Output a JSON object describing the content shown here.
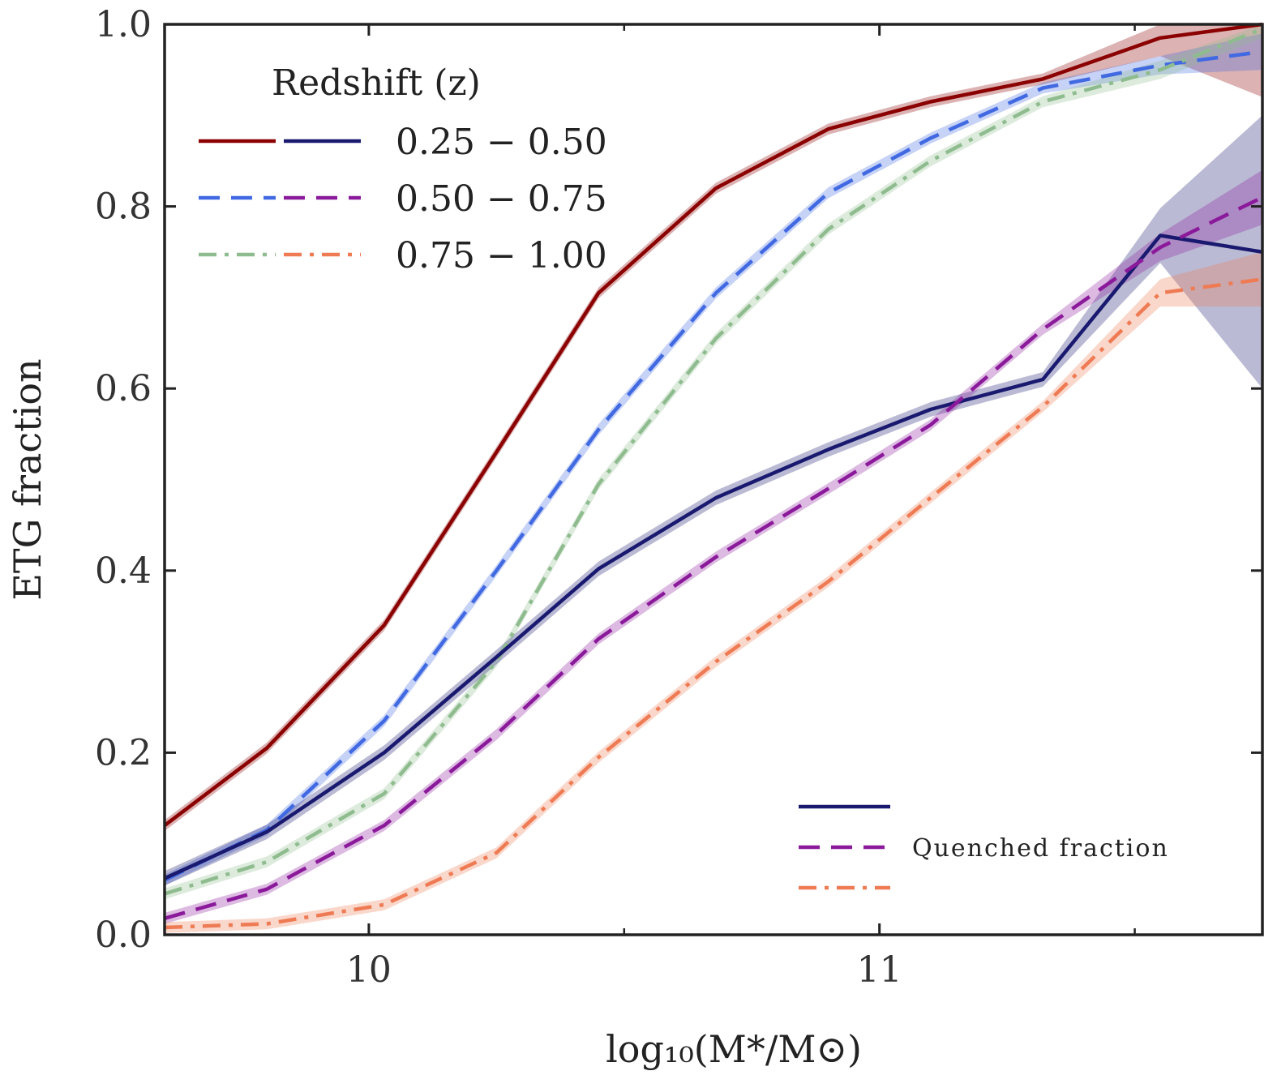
{
  "chart_data": {
    "type": "line",
    "title": "",
    "xlabel": "log₁₀(M*/M⊙)",
    "ylabel": "ETG fraction",
    "xlim": [
      9.6,
      11.75
    ],
    "ylim": [
      0.0,
      1.0
    ],
    "xticks": [
      10,
      11
    ],
    "xtick_labels": [
      "10",
      "11"
    ],
    "xminor": [
      9.5,
      10.5,
      11.5
    ],
    "yticks": [
      0.0,
      0.2,
      0.4,
      0.6,
      0.8,
      1.0
    ],
    "ytick_labels": [
      "0.0",
      "0.2",
      "0.4",
      "0.6",
      "0.8",
      "1.0"
    ],
    "grid": false,
    "legend": {
      "title": "Redshift (z)",
      "position": "top-left",
      "entries": [
        "0.25 − 0.50",
        "0.50 − 0.75",
        "0.75 − 1.00"
      ]
    },
    "legend2": {
      "label": "Quenched fraction",
      "position": "bottom-right"
    },
    "colors": {
      "etg_z1": "#8b0000",
      "etg_z2": "#4169e1",
      "etg_z3": "#8fbc8f",
      "q_z1": "#191970",
      "q_z2": "#8b1a9b",
      "q_z3": "#ee7b54"
    },
    "x": [
      9.6,
      9.8,
      10.03,
      10.25,
      10.45,
      10.68,
      10.9,
      11.1,
      11.32,
      11.55,
      11.75
    ],
    "series": [
      {
        "name": "ETG fraction 0.25 − 0.50",
        "style": "solid",
        "color": "#8b0000",
        "band": 0.006,
        "values": [
          0.12,
          0.205,
          0.34,
          0.53,
          0.705,
          0.82,
          0.885,
          0.915,
          0.94,
          0.985,
          1.0
        ],
        "band_tail": [
          0.02,
          0.08
        ]
      },
      {
        "name": "ETG fraction 0.50 − 0.75",
        "style": "dashed",
        "color": "#4169e1",
        "band": 0.006,
        "values": [
          0.06,
          0.115,
          0.235,
          0.4,
          0.555,
          0.705,
          0.815,
          0.875,
          0.93,
          0.955,
          0.97
        ],
        "band_tail": [
          0.01,
          0.02
        ]
      },
      {
        "name": "ETG fraction 0.75 − 1.00",
        "style": "dashdot",
        "color": "#8fbc8f",
        "band": 0.006,
        "values": [
          0.045,
          0.08,
          0.155,
          0.3,
          0.495,
          0.655,
          0.775,
          0.85,
          0.915,
          0.95,
          0.995
        ],
        "band_tail": [
          0.01,
          0.01
        ]
      },
      {
        "name": "Quenched fraction 0.25 − 0.50",
        "style": "solid",
        "color": "#191970",
        "band": 0.008,
        "values": [
          0.062,
          0.113,
          0.2,
          0.305,
          0.402,
          0.48,
          0.533,
          0.577,
          0.61,
          0.768,
          0.75
        ],
        "band_tail": [
          0.03,
          0.15
        ]
      },
      {
        "name": "Quenched fraction 0.50 − 0.75",
        "style": "dashed",
        "color": "#8b1a9b",
        "band": 0.006,
        "values": [
          0.018,
          0.05,
          0.12,
          0.22,
          0.325,
          0.415,
          0.49,
          0.56,
          0.665,
          0.755,
          0.81
        ],
        "band_tail": [
          0.015,
          0.03
        ]
      },
      {
        "name": "Quenched fraction 0.75 − 1.00",
        "style": "dashdot",
        "color": "#ee7b54",
        "band": 0.006,
        "values": [
          0.008,
          0.012,
          0.033,
          0.09,
          0.195,
          0.3,
          0.388,
          0.48,
          0.58,
          0.705,
          0.72
        ],
        "band_tail": [
          0.015,
          0.03
        ]
      }
    ]
  }
}
